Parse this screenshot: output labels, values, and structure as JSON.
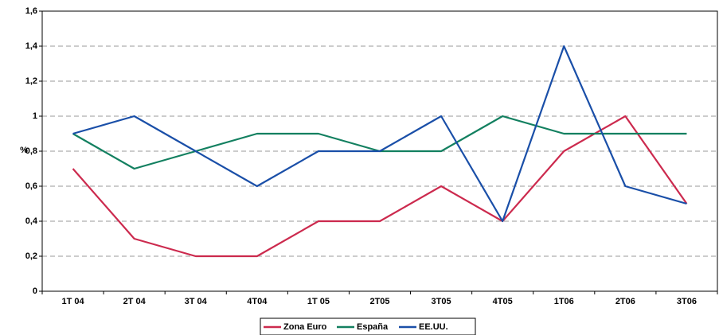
{
  "chart_data": {
    "type": "line",
    "y_label": "%",
    "categories": [
      "1T 04",
      "2T 04",
      "3T 04",
      "4T04",
      "1T 05",
      "2T05",
      "3T05",
      "4T05",
      "1T06",
      "2T06",
      "3T06"
    ],
    "series": [
      {
        "name": "Zona Euro",
        "color": "#cc2a4e",
        "values": [
          0.7,
          0.3,
          0.2,
          0.2,
          0.4,
          0.4,
          0.6,
          0.4,
          0.8,
          1.0,
          0.5
        ]
      },
      {
        "name": "España",
        "color": "#138060",
        "values": [
          0.9,
          0.7,
          0.8,
          0.9,
          0.9,
          0.8,
          0.8,
          1.0,
          0.9,
          0.9,
          0.9
        ]
      },
      {
        "name": "EE.UU.",
        "color": "#1a4fa8",
        "values": [
          0.9,
          1.0,
          0.8,
          0.6,
          0.8,
          0.8,
          1.0,
          0.4,
          1.4,
          0.6,
          0.5
        ]
      }
    ],
    "ylim": [
      0,
      1.6
    ],
    "yticks": [
      0,
      {
        "value": 0.2,
        "label": "0,2"
      },
      {
        "value": 0.4,
        "label": "0,4"
      },
      {
        "value": 0.6,
        "label": "0,6"
      },
      {
        "value": 0.8,
        "label": "0,8"
      },
      1,
      {
        "value": 1.2,
        "label": "1,2"
      },
      {
        "value": 1.4,
        "label": "1,4"
      },
      {
        "value": 1.6,
        "label": "1,6"
      }
    ],
    "grid": true,
    "legend": "bottom"
  }
}
